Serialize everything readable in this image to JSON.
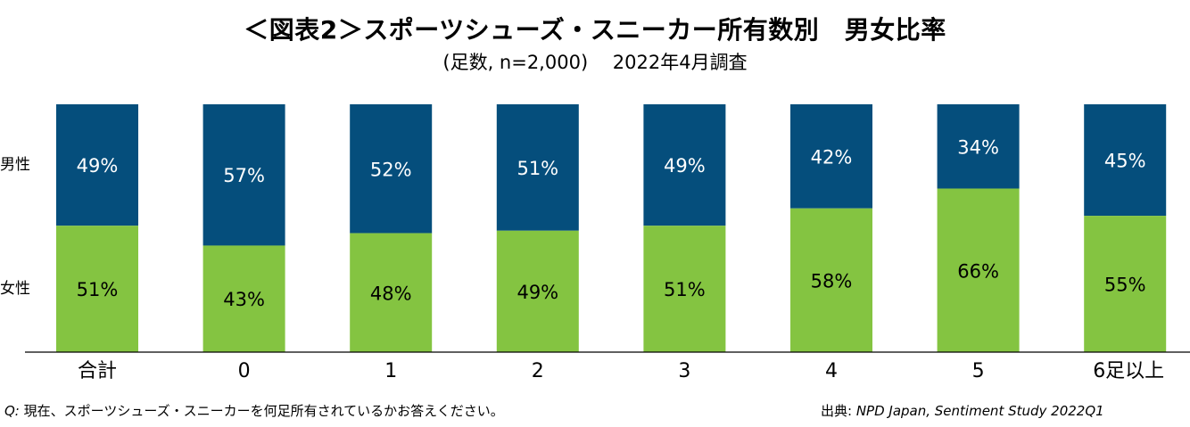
{
  "title": "＜図表2＞スポーツシューズ・スニーカー所有数別　男女比率",
  "subtitle": "(足数, n=2,000)　 2022年4月調査",
  "footnote": {
    "q_prefix": "Q:",
    "q_text": " 現在、スポーツシューズ・スニーカーを何足所有されているかお答えください。",
    "source_prefix": "出典:",
    "source_text": " NPD Japan, Sentiment Study 2022Q1"
  },
  "colors": {
    "male": "#054e7c",
    "female": "#84c441"
  },
  "chart_data": {
    "type": "bar",
    "stacked": true,
    "percent_stacked": true,
    "categories": [
      "合計",
      "0",
      "1",
      "2",
      "3",
      "4",
      "5",
      "6足以上"
    ],
    "series": [
      {
        "name": "女性",
        "values": [
          51,
          43,
          48,
          49,
          51,
          58,
          66,
          55
        ],
        "labels": [
          "51%",
          "43%",
          "48%",
          "49%",
          "51%",
          "58%",
          "66%",
          "55%"
        ]
      },
      {
        "name": "男性",
        "values": [
          49,
          57,
          52,
          51,
          49,
          42,
          34,
          45
        ],
        "labels": [
          "49%",
          "57%",
          "52%",
          "51%",
          "49%",
          "42%",
          "34%",
          "45%"
        ]
      }
    ],
    "ylim": [
      0,
      100
    ],
    "legend": "left"
  }
}
